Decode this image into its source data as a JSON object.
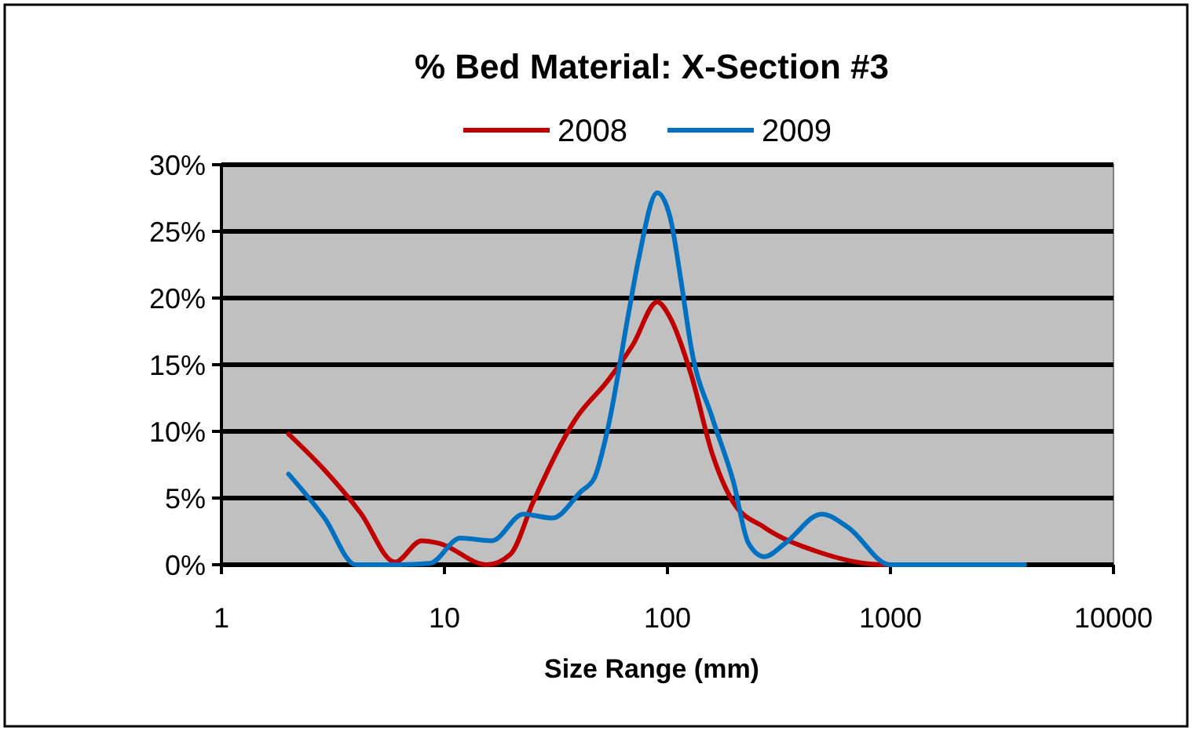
{
  "chart_data": {
    "type": "line",
    "title": "% Bed Material:  X-Section #3",
    "xlabel": "Size Range (mm)",
    "log": "x",
    "grid": "y",
    "legend": "top",
    "marker": "none",
    "line_style": "solid",
    "xlim": [
      1,
      10000
    ],
    "xticks": [
      1,
      10,
      100,
      1000,
      10000
    ],
    "ylim": [
      0,
      30
    ],
    "yticks": [
      {
        "value": 0,
        "label": "0%"
      },
      {
        "value": 5,
        "label": "5%"
      },
      {
        "value": 10,
        "label": "10%"
      },
      {
        "value": 15,
        "label": "15%"
      },
      {
        "value": 20,
        "label": "20%"
      },
      {
        "value": 25,
        "label": "25%"
      },
      {
        "value": 30,
        "label": "30%"
      }
    ],
    "series": [
      {
        "name": "2008",
        "color": "#c00000",
        "x": [
          2,
          2.9,
          4.2,
          6,
          7.9,
          9.5,
          15.5,
          19.8,
          25,
          39,
          54,
          70,
          90,
          103,
          128,
          159,
          197,
          272,
          467,
          940,
          2000
        ],
        "values": [
          9.8,
          7.1,
          3.9,
          0.2,
          1.8,
          1.6,
          0,
          0.8,
          4.7,
          11,
          13.8,
          16.5,
          19.7,
          18.5,
          14.2,
          8.3,
          4.7,
          2.8,
          1,
          0,
          0
        ]
      },
      {
        "name": "2009",
        "color": "#0070c0",
        "x": [
          2,
          2.9,
          4,
          6,
          8.6,
          11.8,
          16.3,
          22.6,
          30.5,
          41,
          47,
          54,
          67,
          74,
          90,
          103,
          115,
          128,
          159,
          197,
          231,
          272,
          337,
          492,
          646,
          995,
          4000
        ],
        "values": [
          6.8,
          3.5,
          0,
          0,
          0.1,
          2,
          1.8,
          3.8,
          3.5,
          5.5,
          6.5,
          10.2,
          18.9,
          22.8,
          27.9,
          26,
          21.3,
          16.2,
          11,
          6.3,
          1.6,
          0.6,
          1.6,
          3.8,
          2.8,
          0,
          0
        ]
      }
    ]
  }
}
